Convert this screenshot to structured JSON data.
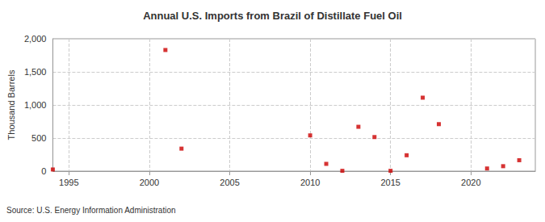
{
  "chart_data": {
    "type": "scatter",
    "title": "Annual U.S. Imports from Brazil of Distillate Fuel Oil",
    "y_label": "Thousand Barrels",
    "source": "Source: U.S. Energy Information Administration",
    "x": [
      1994,
      2001,
      2002,
      2010,
      2011,
      2012,
      2013,
      2014,
      2015,
      2016,
      2017,
      2018,
      2021,
      2022,
      2023
    ],
    "values": [
      25,
      1830,
      340,
      540,
      110,
      5,
      670,
      515,
      5,
      240,
      1110,
      710,
      40,
      75,
      165
    ],
    "color": "#cc0000",
    "marker": "square",
    "xlim": [
      1994,
      2024
    ],
    "xticks": [
      1995,
      2000,
      2005,
      2010,
      2015,
      2020
    ],
    "ylim": [
      0,
      2000
    ],
    "yticks": [
      0,
      500,
      {
        "value": 1000,
        "label": "1,000"
      },
      {
        "value": 1500,
        "label": "1,500"
      },
      {
        "value": 2000,
        "label": "2,000"
      }
    ],
    "grid": true
  }
}
